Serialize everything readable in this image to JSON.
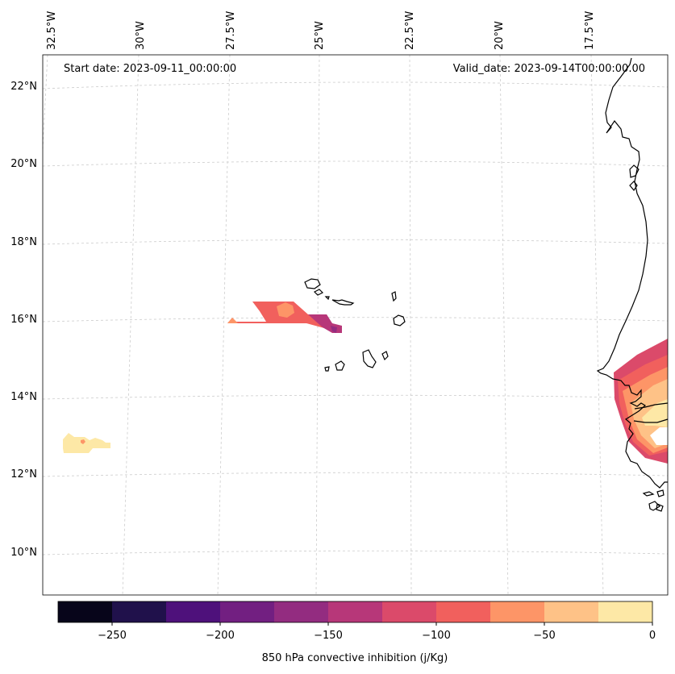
{
  "annotations": {
    "start_date": "Start date: 2023-09-11_00:00:00",
    "valid_date": "Valid_date: 2023-09-14T00:00:00.00"
  },
  "map": {
    "lon_labels": [
      "32.5°W",
      "30°W",
      "27.5°W",
      "25°W",
      "22.5°W",
      "20°W",
      "17.5°W"
    ],
    "lat_labels": [
      "22°N",
      "20°N",
      "18°N",
      "16°N",
      "14°N",
      "12°N",
      "10°N"
    ],
    "gridlines": true,
    "coastline_color": "#000000"
  },
  "colorbar": {
    "label": "850 hPa convective inhibition (j/Kg)",
    "ticks": [
      "−250",
      "−200",
      "−150",
      "−100",
      "−50",
      "0"
    ],
    "colors": [
      "#07051a",
      "#20114b",
      "#4e117b",
      "#721f81",
      "#932c80",
      "#b73779",
      "#db4a6a",
      "#f1605d",
      "#fd9567",
      "#fec287",
      "#fde8a6"
    ]
  }
}
